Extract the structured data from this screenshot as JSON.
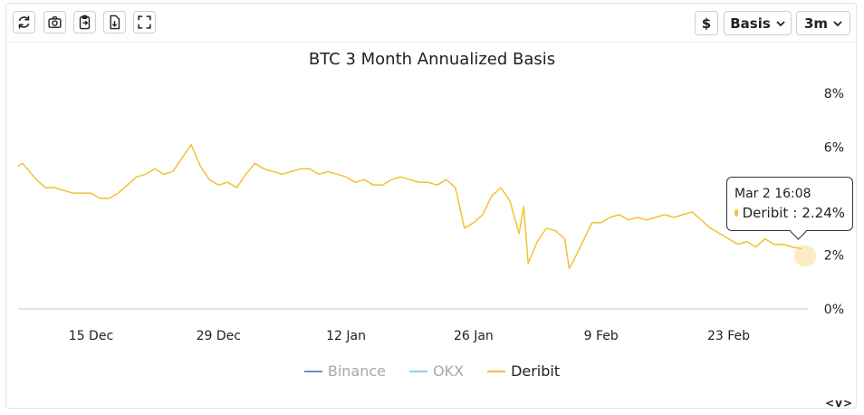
{
  "toolbar": {
    "left_icons": [
      "refresh-icon",
      "camera-icon",
      "clipboard-icon",
      "download-file-icon",
      "fullscreen-icon"
    ],
    "currency_label": "$",
    "metric_label": "Basis",
    "range_label": "3m"
  },
  "nav_arrows": "<v>",
  "tooltip": {
    "time": "Mar 2 16:08",
    "series": "Deribit",
    "value_text": "2.24%"
  },
  "colors": {
    "binance": "#6a8fd8",
    "okx": "#8fd0f0",
    "deribit": "#f2c233",
    "axis": "#cccccc"
  },
  "chart_data": {
    "type": "line",
    "title": "BTC 3 Month Annualized Basis",
    "xlabel": "",
    "ylabel": "",
    "ylim": [
      0,
      8
    ],
    "y_ticks": [
      "0%",
      "2%",
      "4%",
      "6%",
      "8%"
    ],
    "y_tick_values": [
      0,
      2,
      4,
      6,
      8
    ],
    "x_ticks": [
      "15 Dec",
      "29 Dec",
      "12 Jan",
      "26 Jan",
      "9 Feb",
      "23 Feb"
    ],
    "x_tick_values": [
      8,
      22,
      36,
      50,
      64,
      78
    ],
    "xlim": [
      0,
      86.5
    ],
    "legend": [
      "Binance",
      "OKX",
      "Deribit"
    ],
    "legend_position": "bottom",
    "grid": false,
    "series": [
      {
        "name": "Binance",
        "visible": false,
        "x": [],
        "values": []
      },
      {
        "name": "OKX",
        "visible": false,
        "x": [],
        "values": []
      },
      {
        "name": "Deribit",
        "visible": true,
        "x": [
          0,
          0.5,
          1,
          1.5,
          2,
          3,
          4,
          5,
          6,
          7,
          8,
          9,
          10,
          11,
          12,
          13,
          14,
          15,
          16,
          17,
          18,
          19,
          20,
          21,
          22,
          23,
          24,
          25,
          26,
          27,
          28,
          29,
          30,
          31,
          32,
          33,
          34,
          35,
          36,
          37,
          38,
          39,
          40,
          41,
          42,
          43,
          44,
          45,
          46,
          47,
          48,
          49,
          50,
          51,
          52,
          53,
          54,
          55,
          55.5,
          56,
          57,
          58,
          59,
          60,
          60.5,
          61,
          62,
          63,
          64,
          65,
          66,
          67,
          68,
          69,
          70,
          71,
          72,
          73,
          74,
          75,
          76,
          77,
          78,
          79,
          80,
          81,
          82,
          83,
          84,
          85,
          86
        ],
        "values": [
          5.3,
          5.4,
          5.2,
          5.0,
          4.8,
          4.5,
          4.5,
          4.4,
          4.3,
          4.3,
          4.3,
          4.1,
          4.1,
          4.3,
          4.6,
          4.9,
          5.0,
          5.2,
          5.0,
          5.1,
          5.6,
          6.1,
          5.3,
          4.8,
          4.6,
          4.7,
          4.5,
          5.0,
          5.4,
          5.2,
          5.1,
          5.0,
          5.1,
          5.2,
          5.2,
          5.0,
          5.1,
          5.0,
          4.9,
          4.7,
          4.8,
          4.6,
          4.6,
          4.8,
          4.9,
          4.8,
          4.7,
          4.7,
          4.6,
          4.8,
          4.5,
          3.0,
          3.2,
          3.5,
          4.2,
          4.5,
          4.0,
          2.8,
          3.8,
          1.7,
          2.5,
          3.0,
          2.9,
          2.6,
          1.5,
          1.8,
          2.5,
          3.2,
          3.2,
          3.4,
          3.5,
          3.3,
          3.4,
          3.3,
          3.4,
          3.5,
          3.4,
          3.5,
          3.6,
          3.3,
          3.0,
          2.8,
          2.6,
          2.4,
          2.5,
          2.3,
          2.6,
          2.4,
          2.4,
          2.3,
          2.24
        ]
      }
    ]
  }
}
